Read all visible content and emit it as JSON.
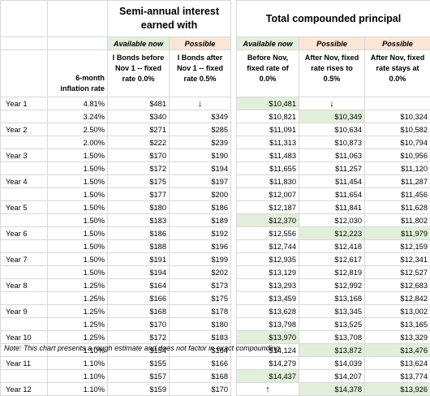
{
  "headers": {
    "semi_title": "Semi-annual interest earned with",
    "total_title": "Total compounded principal",
    "available_now": "Available now",
    "possible": "Possible",
    "inflation_col": "6-month inflation rate",
    "semi_col1": "I Bonds before Nov 1 -- fixed rate 0.0%",
    "semi_col2": "I Bonds after Nov 1 -- fixed rate 0.5%",
    "total_col1": "Before Nov, fixed rate of 0.0%",
    "total_col2": "After Nov, fixed rate rises to 0.5%",
    "total_col3": "After Nov, fixed rate stays at 0.0%"
  },
  "rows": [
    [
      "Year 1",
      "4.81%",
      "$481",
      "↓",
      "$10,481",
      "↓",
      ""
    ],
    [
      "",
      "3.24%",
      "$340",
      "$349",
      "$10,821",
      "$10,349",
      "$10,324"
    ],
    [
      "Year 2",
      "2.50%",
      "$271",
      "$285",
      "$11,091",
      "$10,634",
      "$10,582"
    ],
    [
      "",
      "2.00%",
      "$222",
      "$239",
      "$11,313",
      "$10,873",
      "$10,794"
    ],
    [
      "Year 3",
      "1.50%",
      "$170",
      "$190",
      "$11,483",
      "$11,063",
      "$10,956"
    ],
    [
      "",
      "1.50%",
      "$172",
      "$194",
      "$11,655",
      "$11,257",
      "$11,120"
    ],
    [
      "Year 4",
      "1.50%",
      "$175",
      "$197",
      "$11,830",
      "$11,454",
      "$11,287"
    ],
    [
      "",
      "1.50%",
      "$177",
      "$200",
      "$12,007",
      "$11,654",
      "$11,456"
    ],
    [
      "Year 5",
      "1.50%",
      "$180",
      "$186",
      "$12,187",
      "$11,841",
      "$11,628"
    ],
    [
      "",
      "1.50%",
      "$183",
      "$189",
      "$12,370",
      "$12,030",
      "$11,802"
    ],
    [
      "Year 6",
      "1.50%",
      "$186",
      "$192",
      "$12,556",
      "$12,223",
      "$11,979"
    ],
    [
      "",
      "1.50%",
      "$188",
      "$196",
      "$12,744",
      "$12,418",
      "$12,159"
    ],
    [
      "Year 7",
      "1.50%",
      "$191",
      "$199",
      "$12,935",
      "$12,617",
      "$12,341"
    ],
    [
      "",
      "1.50%",
      "$194",
      "$202",
      "$13,129",
      "$12,819",
      "$12,527"
    ],
    [
      "Year 8",
      "1.25%",
      "$164",
      "$173",
      "$13,293",
      "$12,992",
      "$12,683"
    ],
    [
      "",
      "1.25%",
      "$166",
      "$175",
      "$13,459",
      "$13,168",
      "$12,842"
    ],
    [
      "Year 9",
      "1.25%",
      "$168",
      "$178",
      "$13,628",
      "$13,345",
      "$13,002"
    ],
    [
      "",
      "1.25%",
      "$170",
      "$180",
      "$13,798",
      "$13,525",
      "$13,165"
    ],
    [
      "Year 10",
      "1.25%",
      "$172",
      "$183",
      "$13,970",
      "$13,708",
      "$13,329"
    ],
    [
      "",
      "1.10%",
      "$154",
      "$164",
      "$14,124",
      "$13,872",
      "$13,476"
    ],
    [
      "Year 11",
      "1.10%",
      "$155",
      "$166",
      "$14,279",
      "$14,039",
      "$13,624"
    ],
    [
      "",
      "1.10%",
      "$157",
      "$168",
      "$14,437",
      "$14,207",
      "$13,774"
    ],
    [
      "Year 12",
      "1.10%",
      "$159",
      "$170",
      "↑",
      "$14,378",
      "$13,926"
    ]
  ],
  "highlight": {
    "green_hex": "#e2efda",
    "tan_hex": "#fbe5d6"
  },
  "note": "Note: This chart presents a rough estimate and does not factor in exact compounding"
}
